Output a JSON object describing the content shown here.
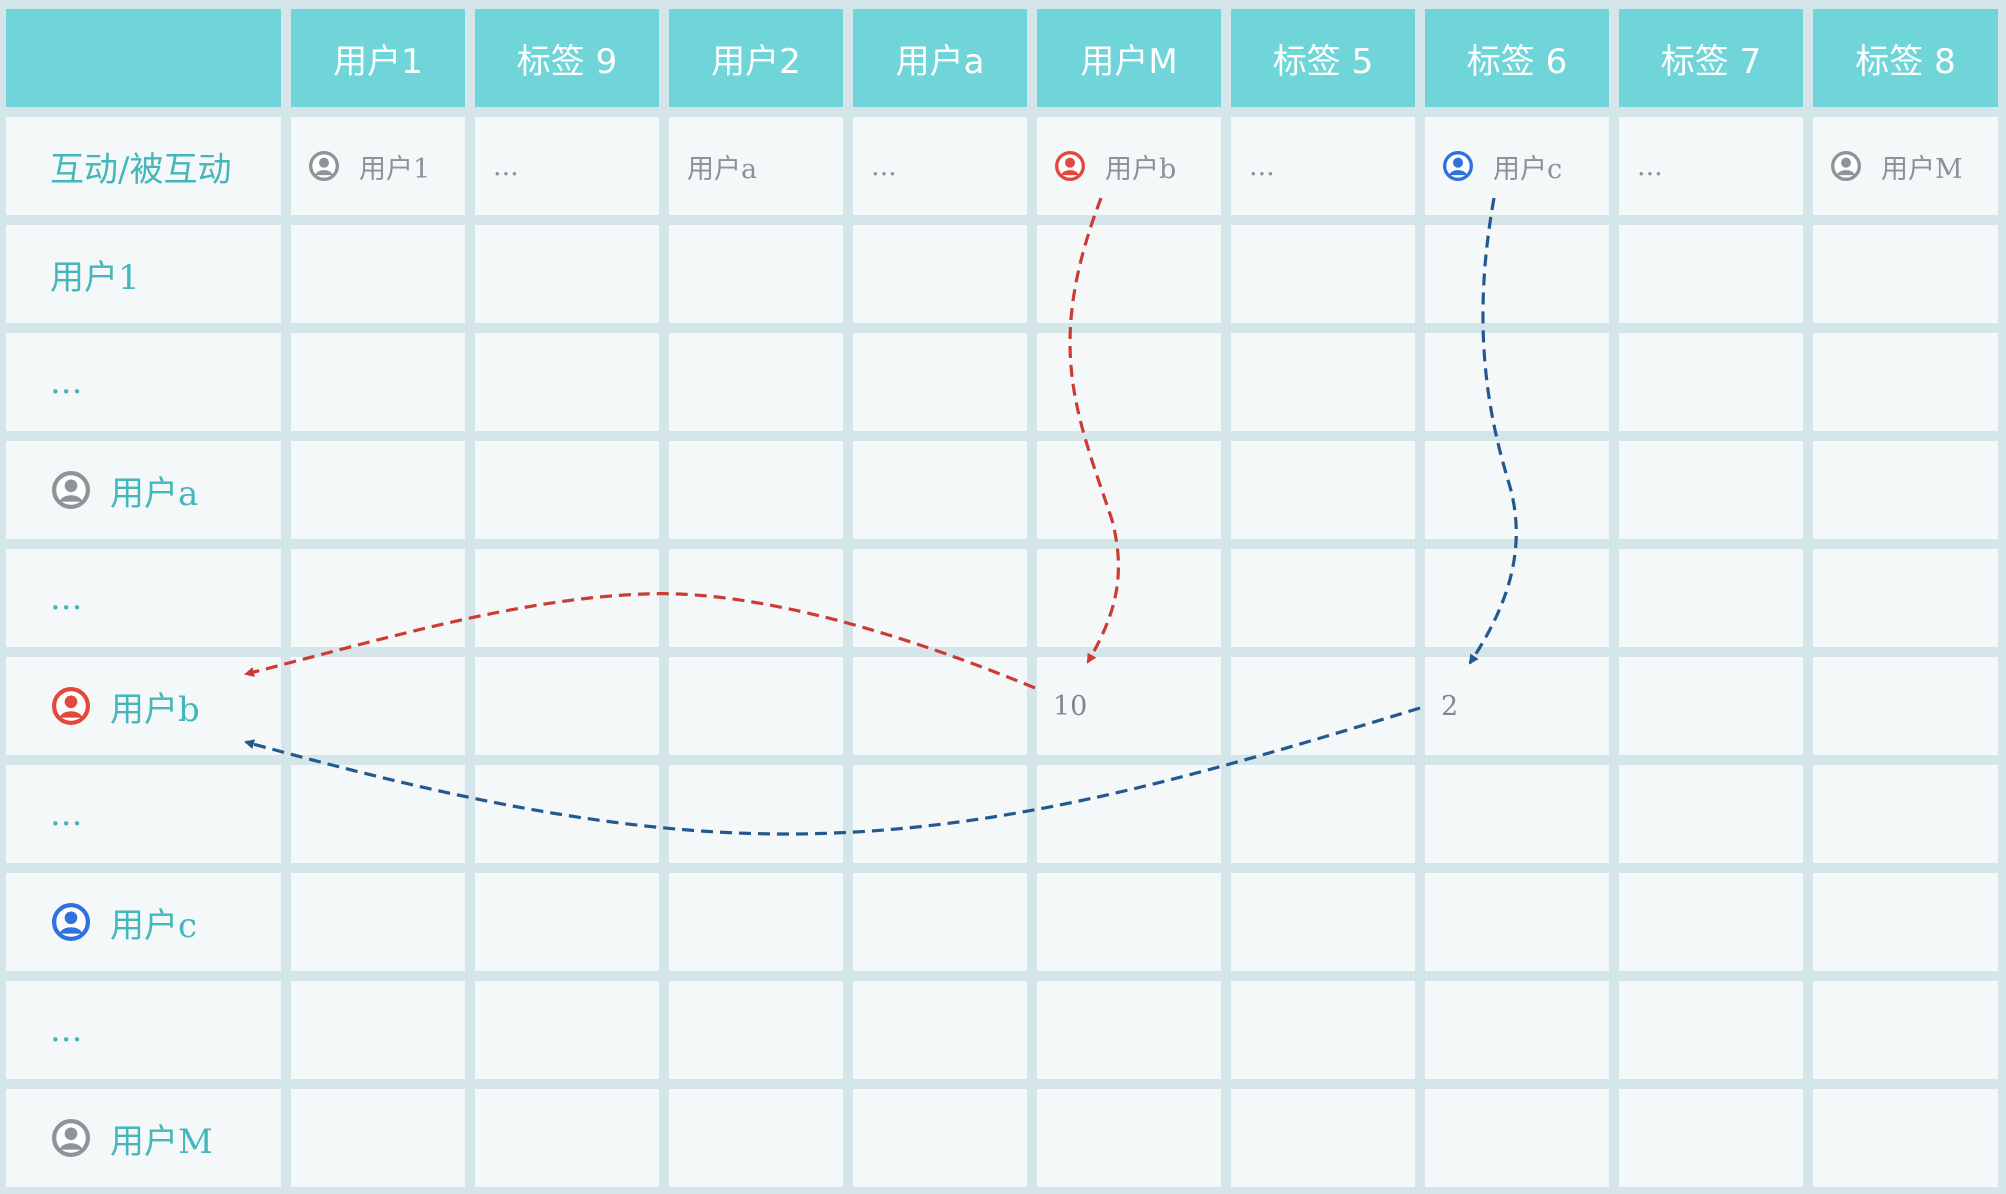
{
  "colors": {
    "header_bg": "#70d5d8",
    "cell_bg": "#f4f8f9",
    "grid_line": "#d5e6ea",
    "row_label": "#45b6bb",
    "cell_text": "#8a9399",
    "icon_gray": "#8f9498",
    "icon_red": "#e2493d",
    "icon_blue": "#2e72dd",
    "arrow_red": "#cc3b35",
    "arrow_blue": "#245990"
  },
  "table": {
    "corner": "",
    "columns": [
      "用户1",
      "标签 9",
      "用户2",
      "用户a",
      "用户M",
      "标签 5",
      "标签 6",
      "标签 7",
      "标签 8"
    ],
    "first_row": {
      "label": "互动/被互动",
      "cells": [
        {
          "text": "用户1",
          "icon": "user-icon",
          "icon_color": "gray"
        },
        {
          "text": "..."
        },
        {
          "text": "用户a"
        },
        {
          "text": "..."
        },
        {
          "text": "用户b",
          "icon": "user-icon",
          "icon_color": "red"
        },
        {
          "text": "..."
        },
        {
          "text": "用户c",
          "icon": "user-icon",
          "icon_color": "blue"
        },
        {
          "text": "..."
        },
        {
          "text": "用户M",
          "icon": "user-icon",
          "icon_color": "gray"
        }
      ]
    },
    "rows": [
      {
        "label": "用户1"
      },
      {
        "label": "..."
      },
      {
        "label": "用户a",
        "icon": "user-icon",
        "icon_color": "gray"
      },
      {
        "label": "..."
      },
      {
        "label": "用户b",
        "icon": "user-icon",
        "icon_color": "red",
        "values": {
          "4": "10",
          "6": "2"
        }
      },
      {
        "label": "..."
      },
      {
        "label": "用户c",
        "icon": "user-icon",
        "icon_color": "blue"
      },
      {
        "label": "..."
      },
      {
        "label": "用户M",
        "icon": "user-icon",
        "icon_color": "gray"
      }
    ]
  },
  "flows": [
    {
      "name": "user-b-to-user-m-flow",
      "color": "red",
      "from": "用户b",
      "to": "用户M",
      "value": "10"
    },
    {
      "name": "user-c-to-tag-6-flow",
      "color": "blue",
      "from": "用户c",
      "to": "标签 6",
      "value": "2"
    }
  ]
}
